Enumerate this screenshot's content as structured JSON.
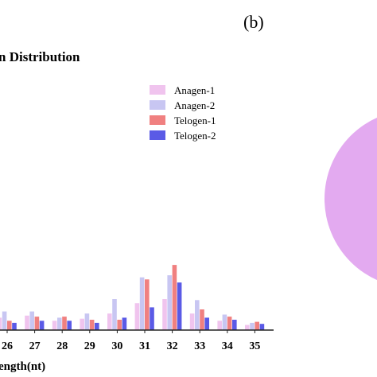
{
  "panel_label": "(b)",
  "chart_data": [
    {
      "type": "bar",
      "title": "n Distribution",
      "xlabel": "ength(nt)",
      "categories": [
        "26",
        "27",
        "28",
        "29",
        "30",
        "31",
        "32",
        "33",
        "34",
        "35"
      ],
      "series": [
        {
          "name": "Anagen-1",
          "color": "#f0c4ee",
          "values": [
            1.2,
            1.4,
            0.9,
            1.1,
            1.6,
            2.6,
            3.0,
            1.6,
            0.9,
            0.5
          ]
        },
        {
          "name": "Anagen-2",
          "color": "#c8c6f2",
          "values": [
            1.8,
            1.8,
            1.2,
            1.6,
            3.0,
            5.1,
            5.3,
            2.9,
            1.5,
            0.7
          ]
        },
        {
          "name": "Telogen-1",
          "color": "#f08080",
          "values": [
            0.9,
            1.3,
            1.3,
            1.0,
            1.0,
            4.9,
            6.3,
            2.0,
            1.3,
            0.8
          ]
        },
        {
          "name": "Telogen-2",
          "color": "#5a5ae6",
          "values": [
            0.7,
            0.9,
            0.9,
            0.7,
            1.2,
            2.2,
            4.6,
            1.2,
            1.0,
            0.6
          ]
        }
      ],
      "ylim": [
        0,
        25
      ],
      "legend": "top-right",
      "grid": false
    },
    {
      "type": "pie",
      "slices": [
        {
          "color": "#e3aaf0"
        }
      ]
    }
  ]
}
